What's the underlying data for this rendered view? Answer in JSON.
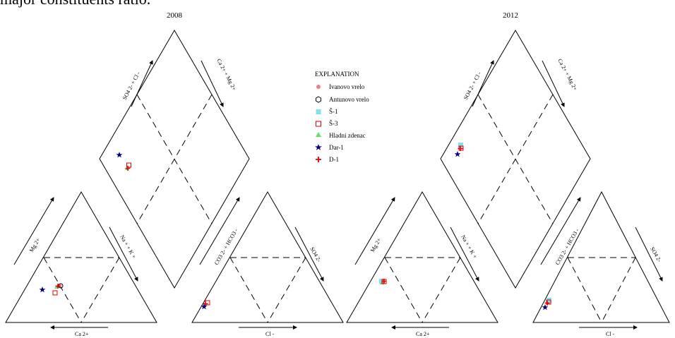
{
  "caption": "major constituents ratio.",
  "panels": [
    {
      "title": "2008"
    },
    {
      "title": "2012"
    }
  ],
  "axis_labels": {
    "left_tri_left": "Mg 2+",
    "left_tri_right": "Na + + K +",
    "left_tri_bottom": "Ca 2+",
    "right_tri_left": "CO3 2- + HCO3 -",
    "right_tri_right": "SO4 2-",
    "right_tri_bottom": "Cl -",
    "diamond_upper_left": "SO4 2- + Cl -",
    "diamond_upper_right": "Ca 2+ + Mg 2+"
  },
  "legend": {
    "title": "EXPLANATION",
    "items": [
      {
        "label": "Ivanovo vrelo",
        "symbol": "circle-filled",
        "color": "#f08080"
      },
      {
        "label": "Antunovo vrelo",
        "symbol": "hexagon-open",
        "color": "#000000"
      },
      {
        "label": "Š-1",
        "symbol": "square-filled",
        "color": "#7fe3ee"
      },
      {
        "label": "Š-3",
        "symbol": "square-open",
        "color": "#e00000"
      },
      {
        "label": "Hladni zdenac",
        "symbol": "triangle-filled",
        "color": "#66dd66"
      },
      {
        "label": "Dar-1",
        "symbol": "star",
        "color": "#000080"
      },
      {
        "label": "D-1",
        "symbol": "cross",
        "color": "#e00000"
      }
    ]
  },
  "chart_data": {
    "type": "scatter",
    "diagram": "Piper trilinear",
    "series_names": [
      "Ivanovo vrelo",
      "Antunovo vrelo",
      "Š-1",
      "Š-3",
      "Hladni zdenac",
      "Dar-1",
      "D-1"
    ]
  }
}
